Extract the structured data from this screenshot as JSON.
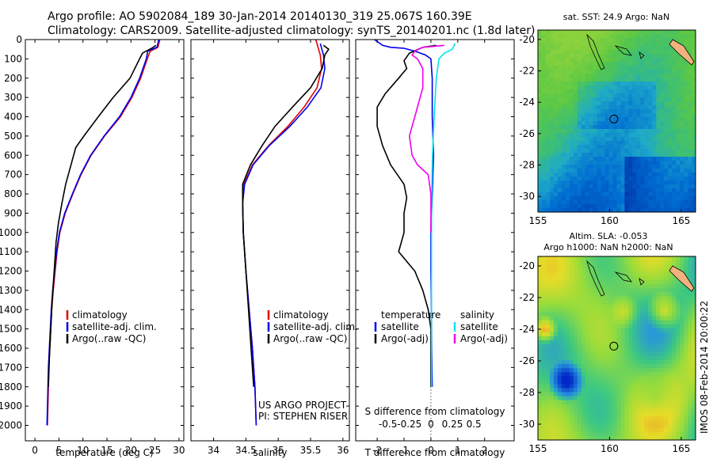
{
  "title": {
    "line1": "Argo profile: AO 5902084_189 30-Jan-2014 20140130_319 25.067S 160.39E",
    "line2": "Climatology: CARS2009. Satellite-adjusted climatology: synTS_20140201.nc (1.8d later)"
  },
  "colors": {
    "clim": "#e00000",
    "sat": "#0000ee",
    "argo": "#000000",
    "sat_s": "#00e5ee",
    "argo_s": "#ee00ee"
  },
  "chart_data": [
    {
      "type": "line",
      "id": "temperature",
      "xlabel": "temperature (deg C)",
      "xlim": [
        -2,
        31
      ],
      "ylim": [
        2080,
        0
      ],
      "xticks": [
        0,
        5,
        10,
        15,
        20,
        25,
        30
      ],
      "yticks": [
        0,
        100,
        200,
        300,
        400,
        500,
        600,
        700,
        800,
        900,
        1000,
        1100,
        1200,
        1300,
        1400,
        1500,
        1600,
        1700,
        1800,
        1900,
        2000
      ],
      "legend": [
        "climatology",
        "satellite-adj. clim.",
        "Argo(..raw -QC)"
      ],
      "series": [
        {
          "name": "climatology",
          "color": "clim",
          "points": [
            [
              26,
              0
            ],
            [
              25.6,
              40
            ],
            [
              24,
              60
            ],
            [
              23.4,
              100
            ],
            [
              22,
              200
            ],
            [
              20.2,
              300
            ],
            [
              17.8,
              400
            ],
            [
              14.5,
              500
            ],
            [
              11.7,
              600
            ],
            [
              9.6,
              700
            ],
            [
              7.9,
              800
            ],
            [
              6.3,
              900
            ],
            [
              5.2,
              1000
            ],
            [
              4.6,
              1100
            ],
            [
              4.2,
              1200
            ],
            [
              3.8,
              1300
            ],
            [
              3.5,
              1400
            ],
            [
              3.3,
              1500
            ],
            [
              3.1,
              1600
            ],
            [
              2.9,
              1700
            ],
            [
              2.8,
              1800
            ],
            [
              2.7,
              1900
            ],
            [
              2.6,
              2000
            ]
          ]
        },
        {
          "name": "satellite-adj. clim.",
          "color": "sat",
          "points": [
            [
              25.8,
              0
            ],
            [
              25.4,
              40
            ],
            [
              23.5,
              60
            ],
            [
              23.2,
              100
            ],
            [
              21.8,
              200
            ],
            [
              20.0,
              300
            ],
            [
              17.6,
              400
            ],
            [
              14.4,
              500
            ],
            [
              11.6,
              600
            ],
            [
              9.5,
              700
            ],
            [
              7.8,
              800
            ],
            [
              6.2,
              900
            ],
            [
              5.1,
              1000
            ],
            [
              4.5,
              1100
            ],
            [
              4.1,
              1200
            ],
            [
              3.7,
              1300
            ],
            [
              3.4,
              1400
            ],
            [
              3.2,
              1500
            ],
            [
              3.0,
              1600
            ],
            [
              2.8,
              1700
            ],
            [
              2.7,
              1800
            ],
            [
              2.6,
              1900
            ],
            [
              2.5,
              2000
            ]
          ]
        },
        {
          "name": "Argo(..raw -QC)",
          "color": "argo",
          "points": [
            [
              25.2,
              30
            ],
            [
              24.3,
              45
            ],
            [
              22.4,
              70
            ],
            [
              21.8,
              100
            ],
            [
              19.8,
              200
            ],
            [
              16.3,
              300
            ],
            [
              13.2,
              400
            ],
            [
              10.2,
              500
            ],
            [
              8.5,
              560
            ],
            [
              7.5,
              650
            ],
            [
              6.4,
              750
            ],
            [
              5.6,
              850
            ],
            [
              4.9,
              950
            ],
            [
              4.4,
              1050
            ],
            [
              4.0,
              1200
            ],
            [
              3.6,
              1350
            ],
            [
              3.3,
              1500
            ],
            [
              3.0,
              1650
            ],
            [
              2.8,
              1800
            ]
          ]
        }
      ]
    },
    {
      "type": "line",
      "id": "salinity",
      "xlabel": "salinity",
      "xlim": [
        33.65,
        36.1
      ],
      "ylim": [
        2080,
        0
      ],
      "xticks": [
        34,
        34.5,
        35,
        35.5,
        36
      ],
      "legend": [
        "climatology",
        "satellite-adj. clim.",
        "Argo(..raw -QC)"
      ],
      "annotation": [
        "US ARGO PROJECT",
        "PI: STEPHEN RISER"
      ],
      "series": [
        {
          "name": "climatology",
          "color": "clim",
          "points": [
            [
              35.58,
              0
            ],
            [
              35.65,
              80
            ],
            [
              35.67,
              150
            ],
            [
              35.6,
              250
            ],
            [
              35.4,
              350
            ],
            [
              35.15,
              450
            ],
            [
              34.85,
              550
            ],
            [
              34.6,
              650
            ],
            [
              34.47,
              750
            ],
            [
              34.45,
              850
            ],
            [
              34.46,
              1000
            ],
            [
              34.5,
              1200
            ],
            [
              34.55,
              1400
            ],
            [
              34.6,
              1600
            ],
            [
              34.64,
              1800
            ],
            [
              34.66,
              2000
            ]
          ]
        },
        {
          "name": "satellite-adj. clim.",
          "color": "sat",
          "points": [
            [
              35.65,
              20
            ],
            [
              35.7,
              80
            ],
            [
              35.72,
              150
            ],
            [
              35.66,
              250
            ],
            [
              35.45,
              350
            ],
            [
              35.18,
              450
            ],
            [
              34.86,
              550
            ],
            [
              34.61,
              650
            ],
            [
              34.48,
              750
            ],
            [
              34.45,
              850
            ],
            [
              34.46,
              1000
            ],
            [
              34.5,
              1200
            ],
            [
              34.55,
              1400
            ],
            [
              34.6,
              1600
            ],
            [
              34.64,
              1800
            ],
            [
              34.66,
              2000
            ]
          ]
        },
        {
          "name": "Argo(..raw -QC)",
          "color": "argo",
          "points": [
            [
              35.7,
              30
            ],
            [
              35.78,
              50
            ],
            [
              35.72,
              80
            ],
            [
              35.68,
              150
            ],
            [
              35.5,
              250
            ],
            [
              35.22,
              350
            ],
            [
              34.95,
              450
            ],
            [
              34.75,
              550
            ],
            [
              34.57,
              650
            ],
            [
              34.45,
              750
            ],
            [
              34.45,
              850
            ],
            [
              34.46,
              1000
            ],
            [
              34.5,
              1200
            ],
            [
              34.54,
              1400
            ],
            [
              34.58,
              1600
            ],
            [
              34.62,
              1800
            ]
          ]
        }
      ]
    },
    {
      "type": "line",
      "id": "difference",
      "xlabel": "T difference from climatology",
      "xlabel2": "S difference from climatology",
      "xlim": [
        -2.8,
        3.1
      ],
      "ylim": [
        2080,
        0
      ],
      "xticks": [
        -2,
        -1,
        0,
        1,
        2
      ],
      "s_tick_labels": [
        "-0.5",
        "-0.25",
        "0",
        "0.25",
        "0.5"
      ],
      "legend_t_title": "temperature",
      "legend_s_title": "salinity",
      "legend": [
        "satellite",
        "Argo(-adj)",
        "satellite",
        "Argo(-adj)"
      ],
      "series": [
        {
          "name": "T satellite",
          "color": "sat",
          "points": [
            [
              -2.1,
              0
            ],
            [
              -1.8,
              30
            ],
            [
              -1.5,
              40
            ],
            [
              -1.0,
              45
            ],
            [
              -0.6,
              60
            ],
            [
              -0.2,
              80
            ],
            [
              0,
              100
            ],
            [
              0.05,
              200
            ],
            [
              0.05,
              400
            ],
            [
              0.1,
              600
            ],
            [
              0.05,
              800
            ],
            [
              0,
              1000
            ],
            [
              0,
              1200
            ],
            [
              0.02,
              1400
            ],
            [
              0.03,
              1600
            ],
            [
              0.05,
              1800
            ]
          ]
        },
        {
          "name": "T Argo(-adj)",
          "color": "argo",
          "points": [
            [
              0.2,
              30
            ],
            [
              -0.3,
              40
            ],
            [
              -0.8,
              70
            ],
            [
              -1.0,
              110
            ],
            [
              -0.9,
              150
            ],
            [
              -1.2,
              200
            ],
            [
              -1.7,
              280
            ],
            [
              -2.0,
              350
            ],
            [
              -2.0,
              450
            ],
            [
              -1.8,
              550
            ],
            [
              -1.5,
              650
            ],
            [
              -1.0,
              750
            ],
            [
              -0.9,
              820
            ],
            [
              -1.0,
              900
            ],
            [
              -1.0,
              1000
            ],
            [
              -1.2,
              1100
            ],
            [
              -0.6,
              1200
            ],
            [
              -0.3,
              1300
            ],
            [
              -0.1,
              1400
            ],
            [
              0,
              1500
            ],
            [
              0,
              1700
            ],
            [
              0,
              1800
            ]
          ]
        },
        {
          "name": "S satellite",
          "color": "sat_s",
          "points": [
            [
              0.9,
              20
            ],
            [
              0.8,
              50
            ],
            [
              0.5,
              70
            ],
            [
              0.3,
              100
            ],
            [
              0.2,
              200
            ],
            [
              0.12,
              400
            ],
            [
              0.06,
              600
            ],
            [
              0.03,
              800
            ],
            [
              0.02,
              1000
            ],
            [
              0.02,
              1400
            ],
            [
              0.02,
              1800
            ]
          ]
        },
        {
          "name": "S Argo(-adj)",
          "color": "argo_s",
          "points": [
            [
              0.5,
              30
            ],
            [
              -0.3,
              40
            ],
            [
              -0.6,
              60
            ],
            [
              -0.7,
              80
            ],
            [
              -0.5,
              100
            ],
            [
              -0.3,
              150
            ],
            [
              -0.3,
              250
            ],
            [
              -0.6,
              400
            ],
            [
              -0.8,
              500
            ],
            [
              -0.7,
              600
            ],
            [
              -0.5,
              650
            ],
            [
              -0.1,
              700
            ],
            [
              0,
              800
            ],
            [
              0,
              1000
            ]
          ]
        }
      ]
    },
    {
      "type": "heatmap",
      "id": "sst",
      "title": "sat. SST: 24.9 Argo: NaN",
      "xlim": [
        155,
        166
      ],
      "ylim": [
        -31,
        -19.4
      ],
      "xticks": [
        155,
        160,
        165
      ],
      "yticks": [
        -20,
        -22,
        -24,
        -26,
        -28,
        -30
      ],
      "marker": [
        160.3,
        -25.07
      ]
    },
    {
      "type": "heatmap",
      "id": "sla",
      "title1": "Altim. SLA: -0.053",
      "title2": "Argo h1000: NaN h2000: NaN",
      "xlim": [
        155,
        166
      ],
      "ylim": [
        -31,
        -19.4
      ],
      "xticks": [
        155,
        160,
        165
      ],
      "yticks": [
        -20,
        -22,
        -24,
        -26,
        -28,
        -30
      ],
      "marker": [
        160.3,
        -25.07
      ]
    }
  ],
  "watermark": "IMOS 08-Feb-2014 20:00:22"
}
